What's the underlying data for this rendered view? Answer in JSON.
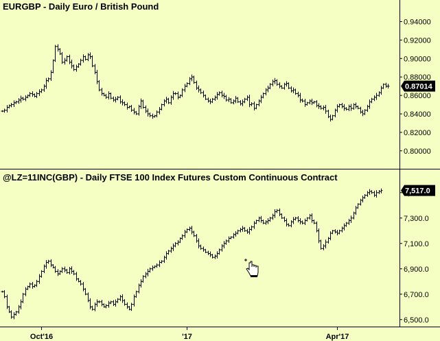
{
  "colors": {
    "background": "#f5ffc4",
    "bars": "#000000",
    "axis": "#000000",
    "last_price_box": "#000000",
    "last_price_text": "#ffffff"
  },
  "chart_data": [
    {
      "type": "ohlc",
      "title": "EURGBP - Daily  Euro / British Pound",
      "ylim": [
        0.785,
        0.95
      ],
      "yticks": [
        0.94,
        0.92,
        0.9,
        0.88,
        0.86,
        0.84,
        0.82,
        0.8
      ],
      "ytick_labels": [
        "0.94000",
        "0.92000",
        "0.90000",
        "0.88000",
        "0.86000",
        "0.84000",
        "0.82000",
        "0.80000"
      ],
      "last_value": 0.87014,
      "last_label": "0.87014",
      "series_close": [
        0.843,
        0.844,
        0.847,
        0.849,
        0.85,
        0.852,
        0.853,
        0.855,
        0.857,
        0.856,
        0.858,
        0.86,
        0.862,
        0.861,
        0.859,
        0.862,
        0.864,
        0.866,
        0.87,
        0.876,
        0.878,
        0.885,
        0.898,
        0.913,
        0.91,
        0.905,
        0.896,
        0.898,
        0.902,
        0.896,
        0.892,
        0.888,
        0.891,
        0.894,
        0.898,
        0.902,
        0.899,
        0.904,
        0.902,
        0.892,
        0.885,
        0.875,
        0.866,
        0.862,
        0.86,
        0.858,
        0.862,
        0.857,
        0.855,
        0.856,
        0.858,
        0.853,
        0.852,
        0.85,
        0.847,
        0.848,
        0.844,
        0.842,
        0.84,
        0.848,
        0.854,
        0.847,
        0.843,
        0.84,
        0.838,
        0.837,
        0.838,
        0.842,
        0.845,
        0.85,
        0.854,
        0.856,
        0.852,
        0.858,
        0.862,
        0.862,
        0.858,
        0.86,
        0.866,
        0.87,
        0.873,
        0.878,
        0.88,
        0.874,
        0.868,
        0.866,
        0.863,
        0.86,
        0.856,
        0.854,
        0.853,
        0.856,
        0.858,
        0.861,
        0.863,
        0.86,
        0.859,
        0.855,
        0.856,
        0.852,
        0.854,
        0.857,
        0.853,
        0.851,
        0.853,
        0.856,
        0.858,
        0.85,
        0.851,
        0.846,
        0.85,
        0.854,
        0.858,
        0.862,
        0.866,
        0.868,
        0.872,
        0.875,
        0.876,
        0.872,
        0.87,
        0.868,
        0.872,
        0.873,
        0.868,
        0.865,
        0.866,
        0.862,
        0.86,
        0.855,
        0.854,
        0.85,
        0.852,
        0.854,
        0.852,
        0.853,
        0.849,
        0.848,
        0.846,
        0.847,
        0.843,
        0.837,
        0.834,
        0.838,
        0.844,
        0.848,
        0.85,
        0.848,
        0.846,
        0.845,
        0.848,
        0.846,
        0.85,
        0.848,
        0.846,
        0.842,
        0.84,
        0.844,
        0.848,
        0.853,
        0.856,
        0.858,
        0.86,
        0.863,
        0.868,
        0.872,
        0.87,
        0.87014
      ]
    },
    {
      "type": "ohlc",
      "title": "@LZ=11INC(GBP) - Daily  FTSE 100 Index Futures Custom Continuous Contract",
      "ylim": [
        6450,
        7580
      ],
      "yticks": [
        7500,
        7300,
        7100,
        6900,
        6700,
        6500
      ],
      "ytick_labels": [
        "7,500.0",
        "7,300.0",
        "7,100.0",
        "6,900.0",
        "6,700.0",
        "6,500.0"
      ],
      "last_value": 7517.0,
      "last_label": "7,517.0",
      "series_close": [
        6720,
        6680,
        6600,
        6560,
        6520,
        6540,
        6560,
        6600,
        6640,
        6700,
        6740,
        6760,
        6780,
        6760,
        6770,
        6800,
        6840,
        6880,
        6920,
        6950,
        6960,
        6930,
        6910,
        6880,
        6860,
        6880,
        6900,
        6890,
        6870,
        6900,
        6880,
        6860,
        6820,
        6800,
        6780,
        6740,
        6700,
        6650,
        6600,
        6580,
        6620,
        6640,
        6640,
        6620,
        6600,
        6610,
        6630,
        6640,
        6620,
        6640,
        6660,
        6680,
        6650,
        6620,
        6600,
        6580,
        6620,
        6680,
        6720,
        6770,
        6800,
        6840,
        6860,
        6880,
        6900,
        6910,
        6920,
        6930,
        6950,
        6960,
        6990,
        7020,
        7040,
        7060,
        7080,
        7100,
        7110,
        7140,
        7160,
        7190,
        7210,
        7220,
        7190,
        7160,
        7120,
        7080,
        7060,
        7050,
        7030,
        7020,
        7010,
        6990,
        7000,
        7020,
        7050,
        7080,
        7100,
        7120,
        7140,
        7150,
        7170,
        7180,
        7200,
        7210,
        7220,
        7200,
        7190,
        7210,
        7230,
        7260,
        7280,
        7300,
        7280,
        7260,
        7270,
        7280,
        7300,
        7320,
        7350,
        7360,
        7330,
        7300,
        7280,
        7250,
        7240,
        7270,
        7290,
        7300,
        7280,
        7270,
        7260,
        7280,
        7300,
        7320,
        7280,
        7260,
        7200,
        7120,
        7060,
        7080,
        7110,
        7140,
        7180,
        7200,
        7190,
        7180,
        7200,
        7220,
        7240,
        7260,
        7280,
        7300,
        7340,
        7380,
        7410,
        7440,
        7460,
        7480,
        7500,
        7510,
        7500,
        7480,
        7500,
        7510,
        7517
      ]
    }
  ],
  "x_axis": {
    "ticks": [
      {
        "label": "Oct'16",
        "index": 17
      },
      {
        "label": "'17",
        "index": 80
      },
      {
        "label": "Apr'17",
        "index": 145
      }
    ]
  },
  "cursor": {
    "icon": "hand-cursor-icon"
  }
}
